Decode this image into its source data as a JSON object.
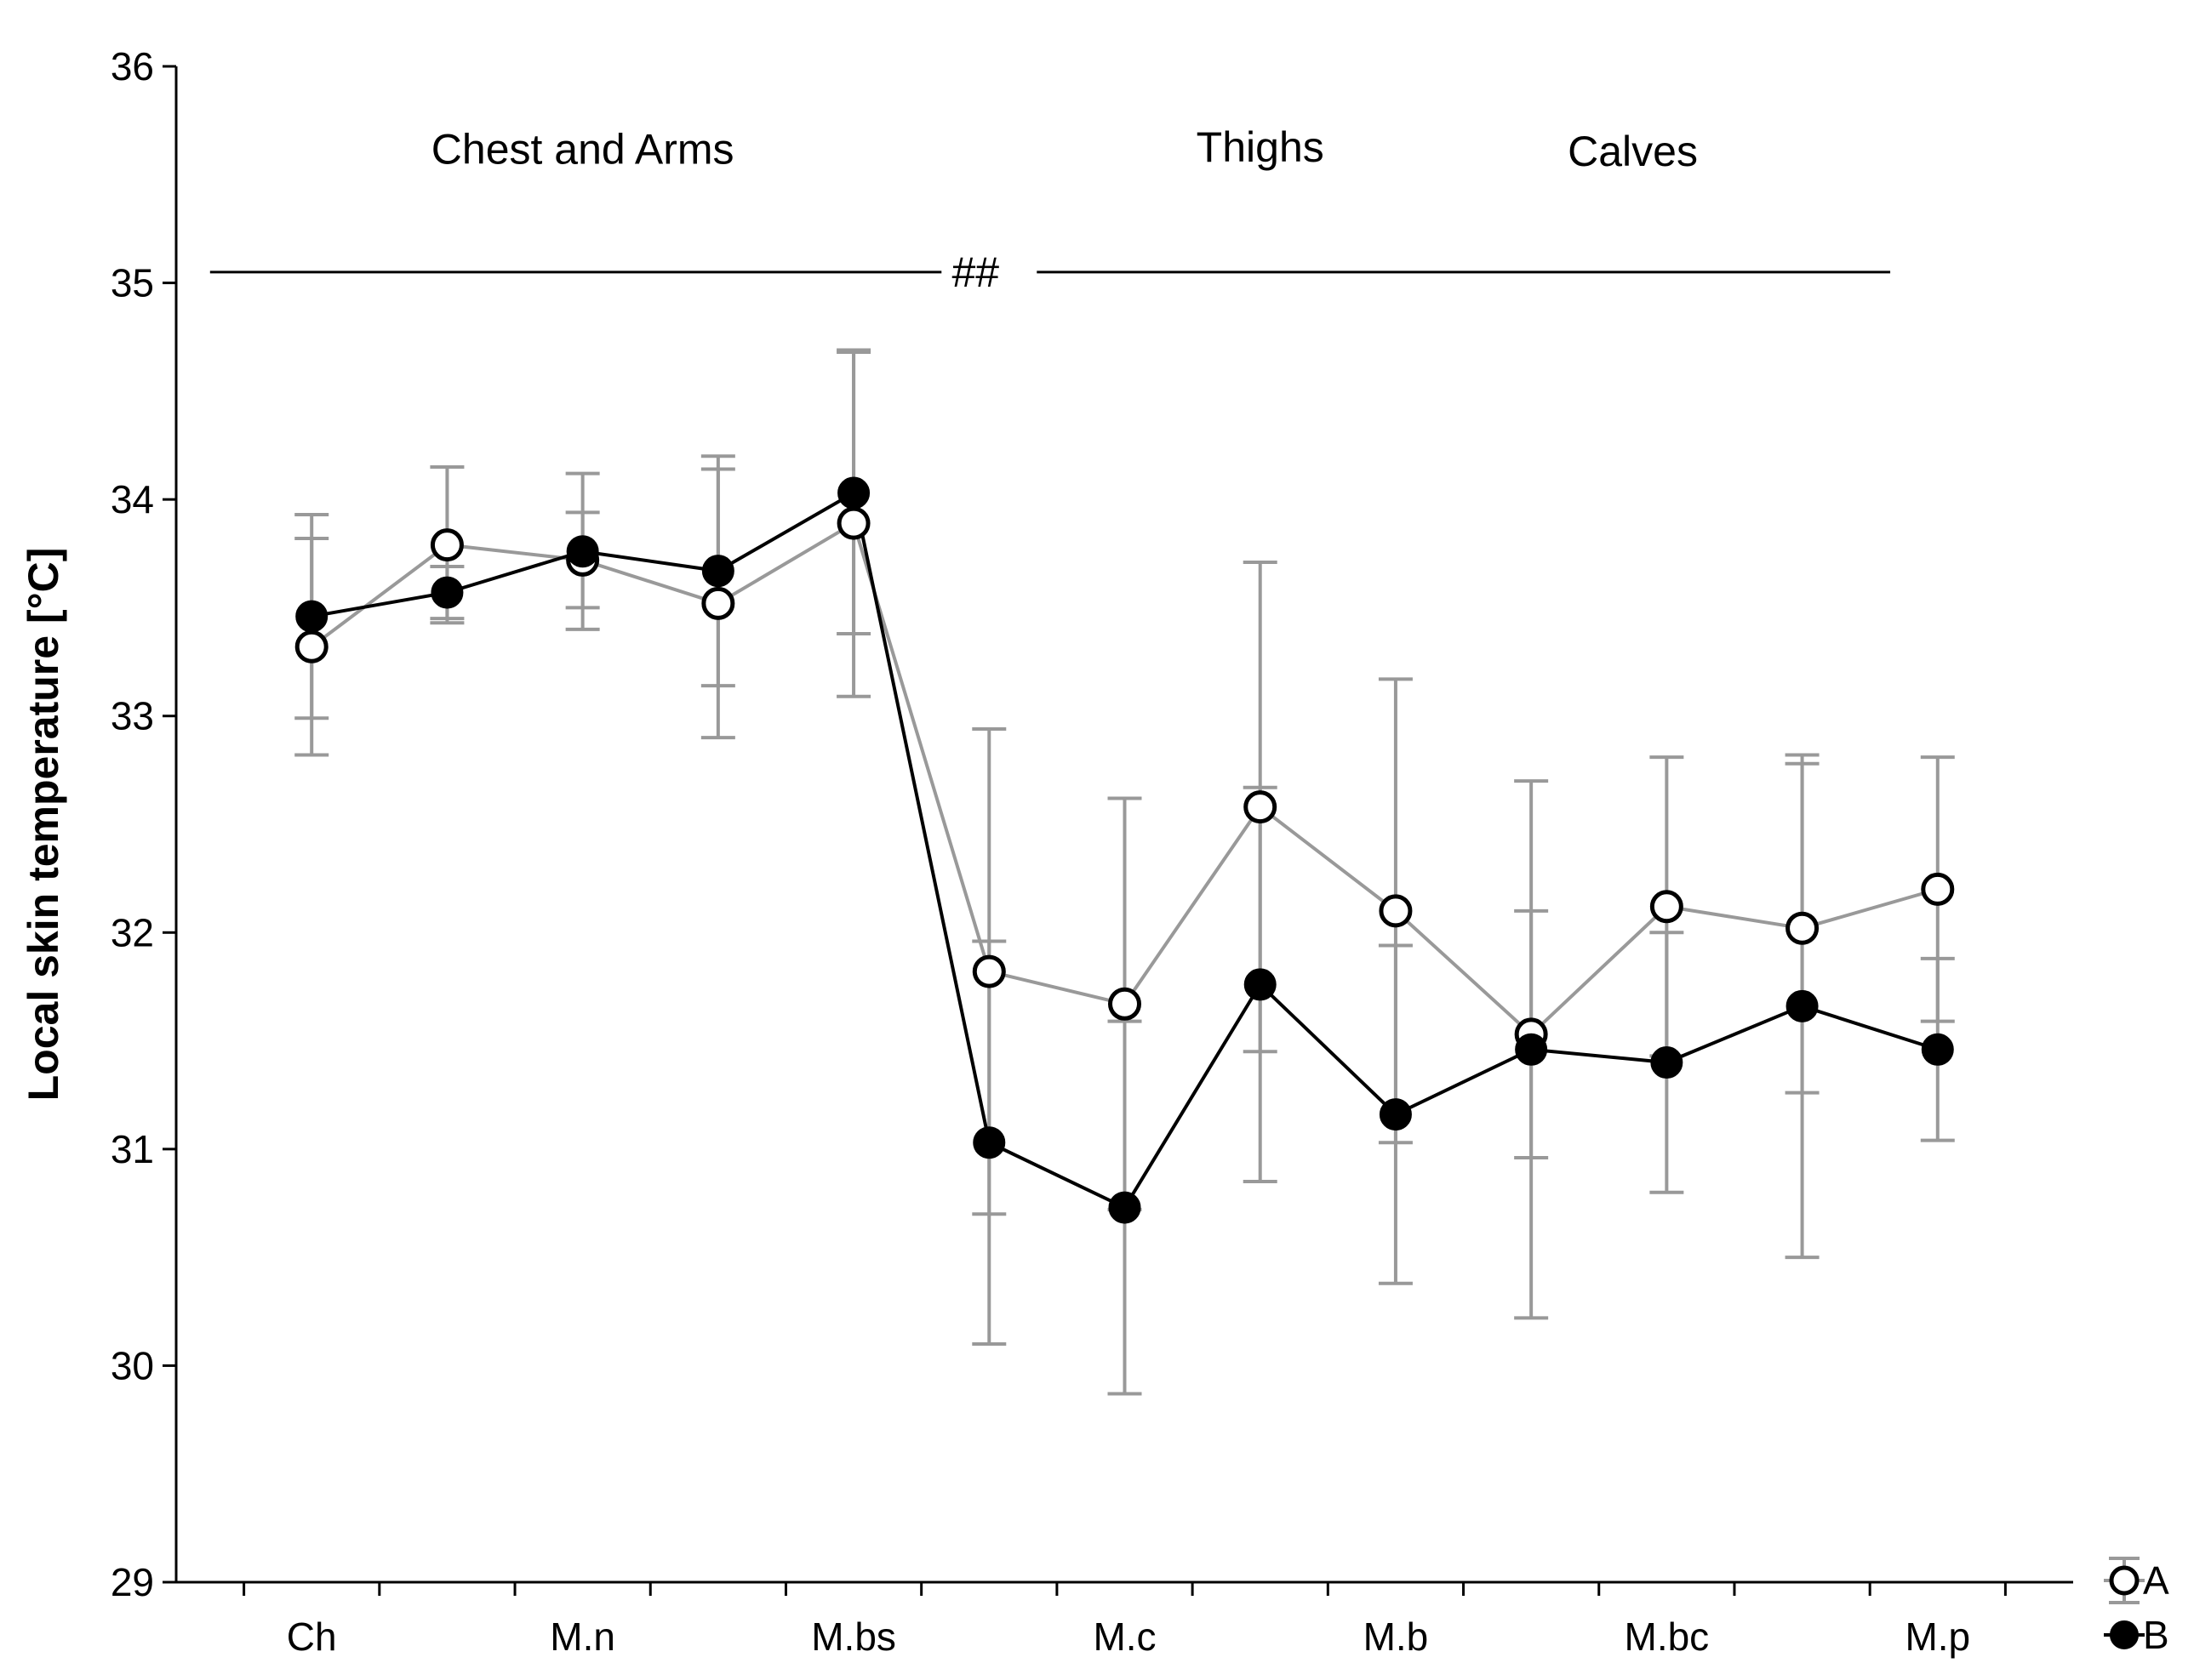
{
  "chart_data": {
    "type": "line",
    "title": "",
    "xlabel": "",
    "ylabel": "Local skin temperature [°C]",
    "ylim": [
      29,
      36
    ],
    "yticks": [
      29,
      30,
      31,
      32,
      33,
      34,
      35,
      36
    ],
    "x_slots": 14,
    "x_labels": [
      {
        "label": "Ch",
        "index": 1
      },
      {
        "label": "M.n",
        "index": 3
      },
      {
        "label": "M.bs",
        "index": 5
      },
      {
        "label": "M.c",
        "index": 7
      },
      {
        "label": "M.b",
        "index": 9
      },
      {
        "label": "M.bc",
        "index": 11
      },
      {
        "label": "M.p",
        "index": 13
      }
    ],
    "series": [
      {
        "name": "A",
        "marker": "open-circle",
        "color": "#999999",
        "points": [
          {
            "x": 1,
            "y": 33.32,
            "err": 0.5
          },
          {
            "x": 2,
            "y": 33.79,
            "err": 0.36
          },
          {
            "x": 3,
            "y": 33.72,
            "err": 0.22
          },
          {
            "x": 4,
            "y": 33.52,
            "err": 0.62
          },
          {
            "x": 5,
            "y": 33.89,
            "err": 0.8
          },
          {
            "x": 6,
            "y": 31.82,
            "err": 1.12
          },
          {
            "x": 7,
            "y": 31.67,
            "err": 0.95
          },
          {
            "x": 8,
            "y": 32.58,
            "err": 1.13
          },
          {
            "x": 9,
            "y": 32.1,
            "err": 1.07
          },
          {
            "x": 10,
            "y": 31.53,
            "err": 0.57
          },
          {
            "x": 11,
            "y": 32.12,
            "err": 0.69
          },
          {
            "x": 12,
            "y": 32.02,
            "err": 0.76
          },
          {
            "x": 13,
            "y": 32.2,
            "err": 0.61
          }
        ]
      },
      {
        "name": "B",
        "marker": "filled-circle",
        "color": "#000000",
        "points": [
          {
            "x": 1,
            "y": 33.46,
            "err": 0.47
          },
          {
            "x": 2,
            "y": 33.57,
            "err": 0.12
          },
          {
            "x": 3,
            "y": 33.76,
            "err": 0.36
          },
          {
            "x": 4,
            "y": 33.67,
            "err": 0.53
          },
          {
            "x": 5,
            "y": 34.03,
            "err": 0.65
          },
          {
            "x": 6,
            "y": 31.03,
            "err": 0.93
          },
          {
            "x": 7,
            "y": 30.73,
            "err": 0.86
          },
          {
            "x": 8,
            "y": 31.76,
            "err": 0.91
          },
          {
            "x": 9,
            "y": 31.16,
            "err": 0.78
          },
          {
            "x": 10,
            "y": 31.46,
            "err": 1.24
          },
          {
            "x": 11,
            "y": 31.4,
            "err": 0.6
          },
          {
            "x": 12,
            "y": 31.66,
            "err": 1.16
          },
          {
            "x": 13,
            "y": 31.46,
            "err": 0.42
          }
        ]
      }
    ],
    "annotations": {
      "groups": [
        {
          "label": "Chest and Arms",
          "x": 3.0,
          "y": 35.55
        },
        {
          "label": "Thighs",
          "x": 8.0,
          "y": 35.56
        },
        {
          "label": "Calves",
          "x": 10.75,
          "y": 35.54
        }
      ],
      "significance": {
        "label": "##",
        "x": 6.0,
        "y": 35.05,
        "line_from": 0.25,
        "line_to": 12.65
      },
      "legend_position": "bottom-right"
    }
  }
}
